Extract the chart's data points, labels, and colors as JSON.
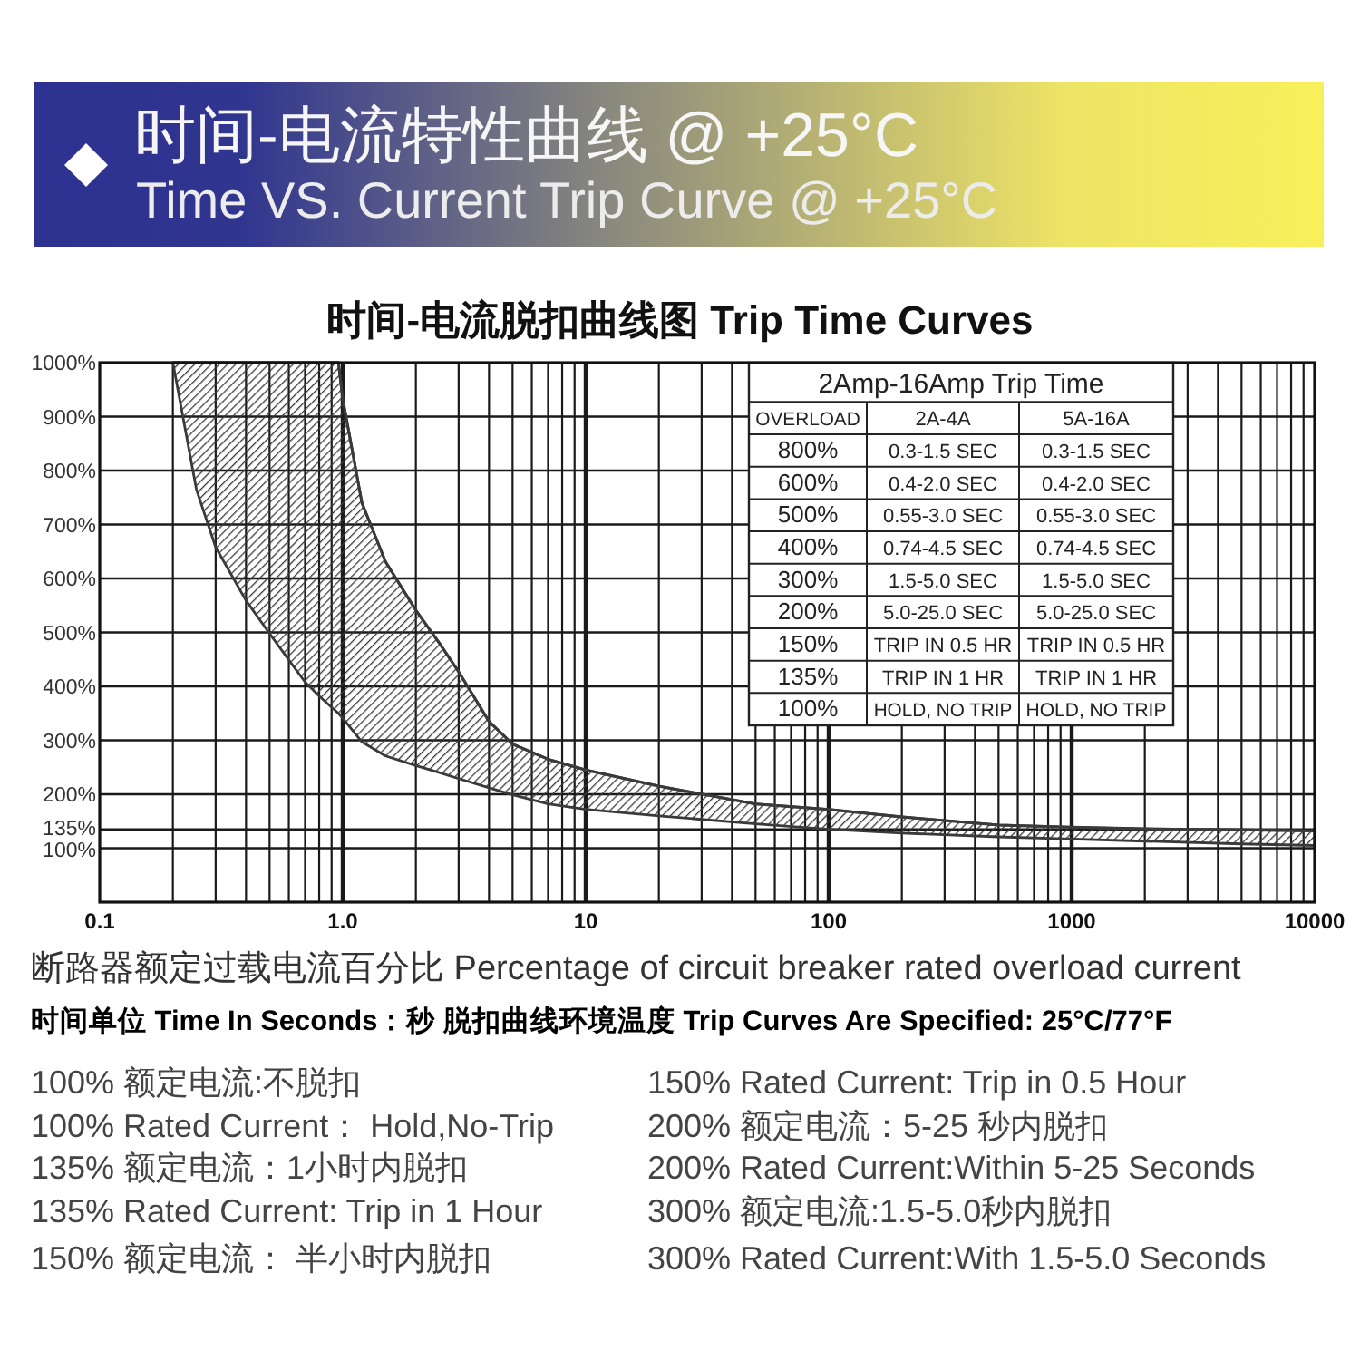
{
  "chart_data": {
    "type": "line",
    "title": "时间-电流特性曲线 @ +25°C",
    "subtitle": "Time VS. Current Trip Curve @ +25°C",
    "log": "x",
    "grid": true,
    "xlim": [
      0.1,
      10000
    ],
    "xticks": [
      0.1,
      {
        "value": 1,
        "label": "1.0"
      },
      10,
      100,
      1000,
      10000
    ],
    "ylim": [
      0,
      1000
    ],
    "yticks": [
      {
        "value": 100,
        "label": "100%"
      },
      {
        "value": 135,
        "label": "135%"
      },
      {
        "value": 200,
        "label": "200%"
      },
      {
        "value": 300,
        "label": "300%"
      },
      {
        "value": 400,
        "label": "400%"
      },
      {
        "value": 500,
        "label": "500%"
      },
      {
        "value": 600,
        "label": "600%"
      },
      {
        "value": 700,
        "label": "700%"
      },
      {
        "value": 800,
        "label": "800%"
      },
      {
        "value": 900,
        "label": "900%"
      },
      {
        "value": 1000,
        "label": "1000%"
      }
    ],
    "series": [
      {
        "color": "#3a3a3a",
        "x": [
          0.2,
          0.25,
          0.3,
          0.4,
          0.5,
          0.6,
          0.7,
          0.8,
          0.96,
          1,
          1.2,
          1.5,
          2,
          2.5,
          3,
          4,
          5,
          7,
          10,
          20,
          50,
          100,
          200,
          500,
          1000,
          2000,
          5000,
          10000
        ],
        "values": [
          1000,
          1000,
          1000,
          1000,
          1000,
          1000,
          1000,
          1000,
          1000,
          933,
          740,
          631,
          541,
          480,
          427,
          335,
          293,
          265,
          245,
          215,
          182,
          172,
          158,
          143,
          139,
          136,
          134,
          132
        ],
        "lower": [
          1000,
          765,
          658,
          559,
          498,
          449,
          408,
          382,
          350,
          341,
          297,
          271,
          253,
          240,
          229,
          212,
          199,
          182,
          172,
          160,
          145,
          135,
          128,
          121,
          117,
          113,
          108,
          105
        ],
        "upper": [
          1000,
          1000,
          1000,
          1000,
          1000,
          1000,
          1000,
          1000,
          1000,
          933,
          740,
          631,
          541,
          480,
          427,
          335,
          293,
          265,
          245,
          215,
          182,
          172,
          158,
          143,
          139,
          136,
          134,
          132
        ]
      }
    ],
    "annotations": [
      "时间-电流脱扣曲线图 Trip Time Curves",
      "断路器额定过载电流百分比 Percentage of circuit breaker rated overload current",
      "时间单位 Time In Seconds：秒 脱扣曲线环境温度 Trip Curves Are Specified: 25°C/77°F",
      "100% 额定电流:不脱扣",
      "100% Rated Current： Hold,No-Trip",
      "135% 额定电流：1小时内脱扣",
      "135% Rated Current: Trip in 1 Hour",
      "150% 额定电流： 半小时内脱扣",
      "150% Rated Current: Trip in 0.5 Hour",
      "200% 额定电流：5-25 秒内脱扣",
      "200% Rated Current:Within 5-25 Seconds",
      "300% 额定电流:1.5-5.0秒内脱扣",
      "300% Rated Current:With 1.5-5.0 Seconds",
      "2Amp-16Amp Trip Time",
      "OVERLOAD",
      "2A-4A",
      "5A-16A",
      "800%",
      "0.3-1.5 SEC",
      "0.3-1.5 SEC",
      "600%",
      "0.4-2.0 SEC",
      "0.4-2.0 SEC",
      "500%",
      "0.55-3.0 SEC",
      "0.55-3.0 SEC",
      "400%",
      "0.74-4.5 SEC",
      "0.74-4.5 SEC",
      "300%",
      "1.5-5.0 SEC",
      "1.5-5.0 SEC",
      "200%",
      "5.0-25.0 SEC",
      "5.0-25.0 SEC",
      "150%",
      "TRIP IN 0.5 HR",
      "TRIP IN 0.5 HR",
      "135%",
      "TRIP IN 1 HR",
      "TRIP IN 1 HR",
      "100%",
      "HOLD, NO TRIP",
      "HOLD, NO TRIP"
    ]
  }
}
